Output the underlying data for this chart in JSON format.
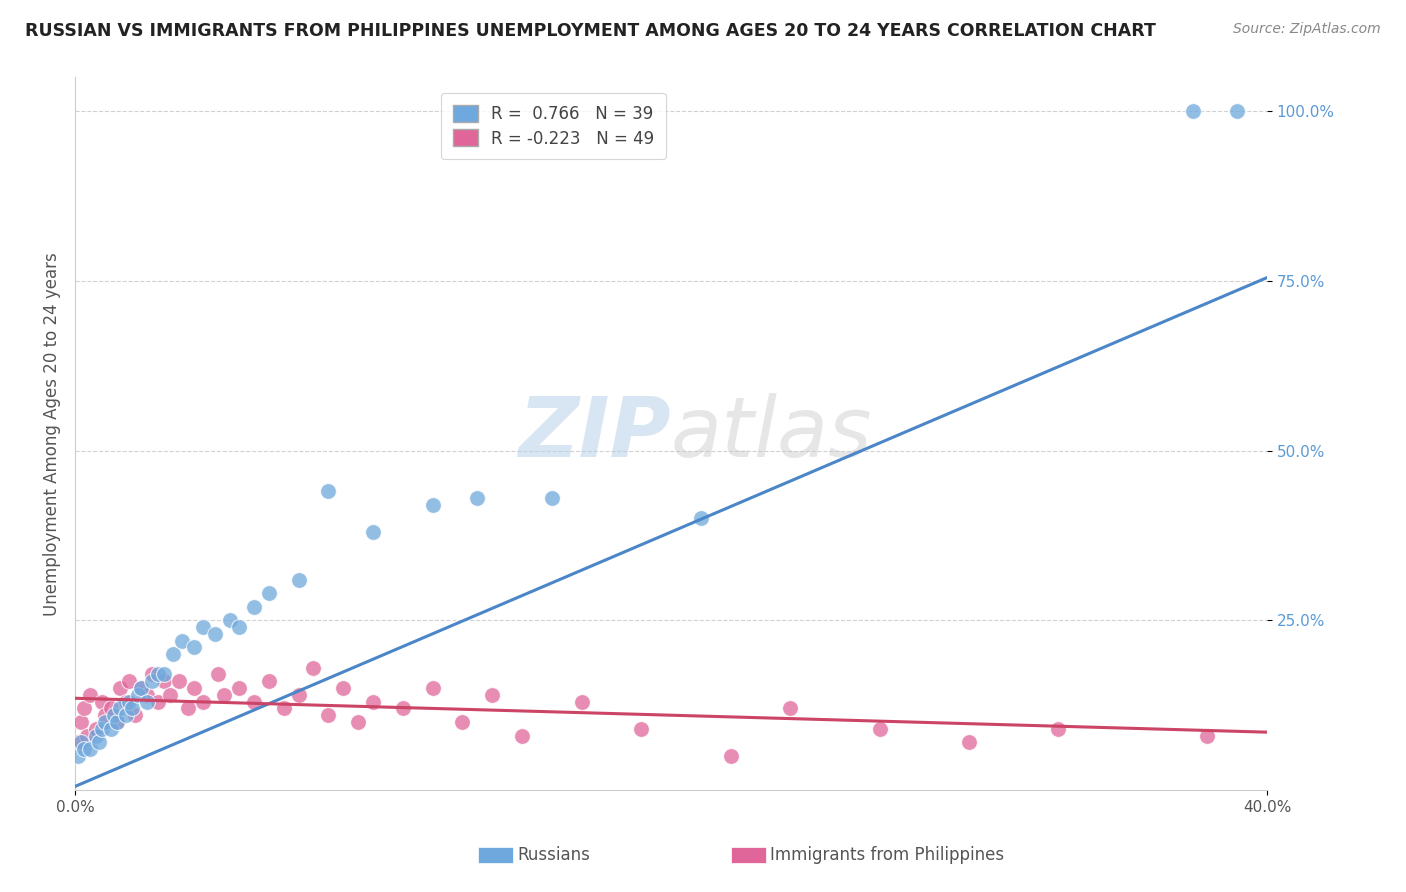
{
  "title": "RUSSIAN VS IMMIGRANTS FROM PHILIPPINES UNEMPLOYMENT AMONG AGES 20 TO 24 YEARS CORRELATION CHART",
  "source": "Source: ZipAtlas.com",
  "ylabel": "Unemployment Among Ages 20 to 24 years",
  "watermark_zip": "ZIP",
  "watermark_atlas": "atlas",
  "xlim": [
    0.0,
    0.4
  ],
  "ylim": [
    0.0,
    1.05
  ],
  "yticks": [
    0.0,
    0.25,
    0.5,
    0.75,
    1.0
  ],
  "xticks": [
    0.0,
    0.4
  ],
  "russian_R": 0.766,
  "russian_N": 39,
  "philippines_R": -0.223,
  "philippines_N": 49,
  "russian_color": "#6fa8dc",
  "philippines_color": "#e06699",
  "russian_line_color": "#4a86c8",
  "philippines_line_color": "#cc4466",
  "tick_label_color": "#5b9bd5",
  "background_color": "#ffffff",
  "grid_color": "#cccccc",
  "title_color": "#222222",
  "source_color": "#888888",
  "ylabel_color": "#555555",
  "russian_trend_x": [
    0.0,
    0.4
  ],
  "russian_trend_y": [
    0.005,
    0.755
  ],
  "philippines_trend_x": [
    0.0,
    0.4
  ],
  "philippines_trend_y": [
    0.135,
    0.085
  ],
  "russian_x": [
    0.001,
    0.002,
    0.003,
    0.005,
    0.007,
    0.008,
    0.009,
    0.01,
    0.012,
    0.013,
    0.014,
    0.015,
    0.017,
    0.018,
    0.019,
    0.021,
    0.022,
    0.024,
    0.026,
    0.028,
    0.03,
    0.033,
    0.036,
    0.04,
    0.043,
    0.047,
    0.052,
    0.055,
    0.06,
    0.065,
    0.075,
    0.085,
    0.1,
    0.12,
    0.135,
    0.16,
    0.21,
    0.375,
    0.39
  ],
  "russian_y": [
    0.05,
    0.07,
    0.06,
    0.06,
    0.08,
    0.07,
    0.09,
    0.1,
    0.09,
    0.11,
    0.1,
    0.12,
    0.11,
    0.13,
    0.12,
    0.14,
    0.15,
    0.13,
    0.16,
    0.17,
    0.17,
    0.2,
    0.22,
    0.21,
    0.24,
    0.23,
    0.25,
    0.24,
    0.27,
    0.29,
    0.31,
    0.44,
    0.38,
    0.42,
    0.43,
    0.43,
    0.4,
    1.0,
    1.0
  ],
  "philippines_x": [
    0.001,
    0.002,
    0.003,
    0.004,
    0.005,
    0.007,
    0.009,
    0.01,
    0.012,
    0.014,
    0.015,
    0.017,
    0.018,
    0.02,
    0.022,
    0.024,
    0.026,
    0.028,
    0.03,
    0.032,
    0.035,
    0.038,
    0.04,
    0.043,
    0.048,
    0.05,
    0.055,
    0.06,
    0.065,
    0.07,
    0.075,
    0.08,
    0.085,
    0.09,
    0.095,
    0.1,
    0.11,
    0.12,
    0.13,
    0.14,
    0.15,
    0.17,
    0.19,
    0.22,
    0.24,
    0.27,
    0.3,
    0.33,
    0.38
  ],
  "philippines_y": [
    0.07,
    0.1,
    0.12,
    0.08,
    0.14,
    0.09,
    0.13,
    0.11,
    0.12,
    0.1,
    0.15,
    0.13,
    0.16,
    0.11,
    0.15,
    0.14,
    0.17,
    0.13,
    0.16,
    0.14,
    0.16,
    0.12,
    0.15,
    0.13,
    0.17,
    0.14,
    0.15,
    0.13,
    0.16,
    0.12,
    0.14,
    0.18,
    0.11,
    0.15,
    0.1,
    0.13,
    0.12,
    0.15,
    0.1,
    0.14,
    0.08,
    0.13,
    0.09,
    0.05,
    0.12,
    0.09,
    0.07,
    0.09,
    0.08
  ]
}
